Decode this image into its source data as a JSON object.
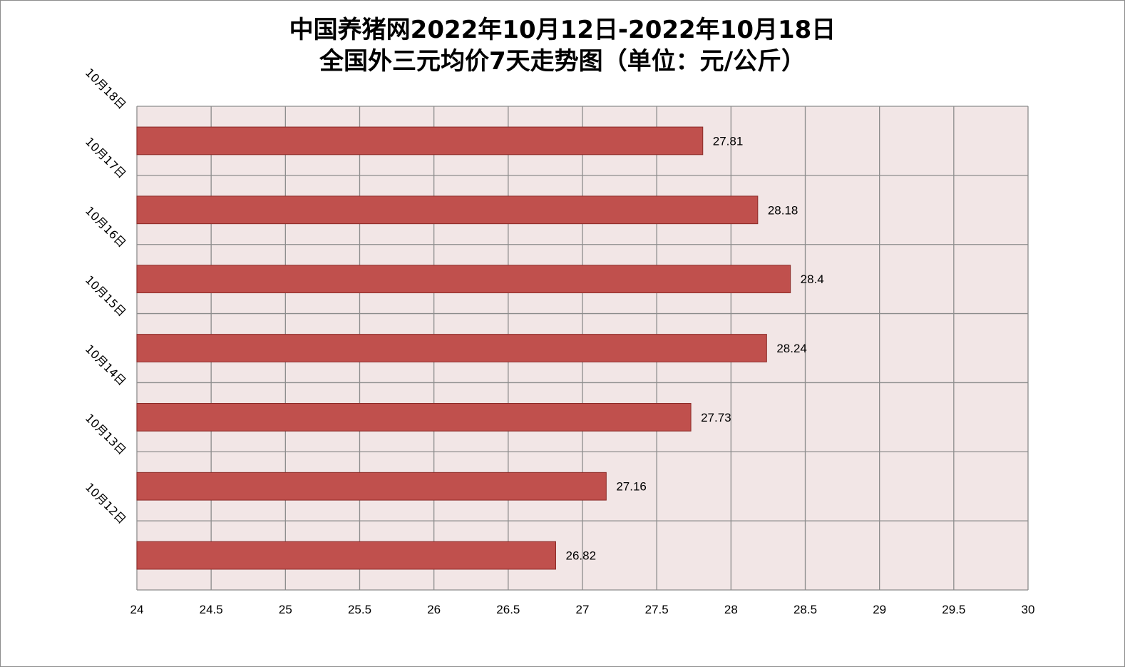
{
  "chart_data": {
    "type": "bar",
    "orientation": "horizontal",
    "title_line1": "中国养猪网2022年10月12日-2022年10月18日",
    "title_line2": "全国外三元均价7天走势图（单位：元/公斤）",
    "categories": [
      "10月12日",
      "10月13日",
      "10月14日",
      "10月15日",
      "10月16日",
      "10月17日",
      "10月18日"
    ],
    "values": [
      26.82,
      27.16,
      27.73,
      28.24,
      28.4,
      28.18,
      27.81
    ],
    "value_labels": [
      "26.82",
      "27.16",
      "27.73",
      "28.24",
      "28.4",
      "28.18",
      "27.81"
    ],
    "xlim": [
      24,
      30
    ],
    "xticks": [
      "24",
      "24.5",
      "25",
      "25.5",
      "26",
      "26.5",
      "27",
      "27.5",
      "28",
      "28.5",
      "29",
      "29.5",
      "30"
    ],
    "grid": true,
    "legend": "none",
    "colors": {
      "bar_fill": "#c0504d",
      "bar_stroke": "#8b2a27",
      "plot_background": "#f2e6e6",
      "grid": "#8c8c8c"
    }
  }
}
